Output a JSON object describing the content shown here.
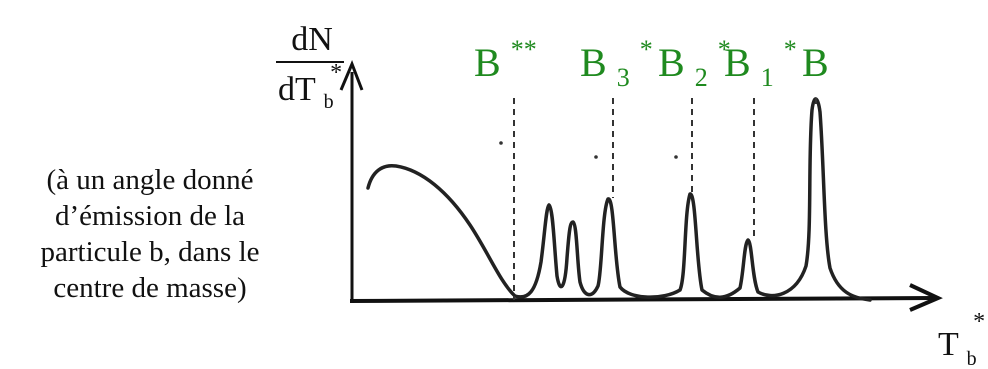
{
  "y_axis_label": {
    "numerator": "dN",
    "denominator_main": "dT",
    "denominator_sub": "b",
    "denominator_sup": "*"
  },
  "x_axis_label": {
    "main": "T",
    "sub": "b",
    "sup": "*"
  },
  "caption_lines": [
    "(à un angle donné",
    "d’émission de la",
    "particule b, dans le",
    "centre de masse)"
  ],
  "peak_labels": [
    {
      "base": "B",
      "sub": "",
      "sup": "**"
    },
    {
      "base": "B",
      "sub": "3",
      "sup": "*"
    },
    {
      "base": "B",
      "sub": "2",
      "sup": "*"
    },
    {
      "base": "B",
      "sub": "1",
      "sup": "*"
    },
    {
      "base": "B",
      "sub": "",
      "sup": ""
    }
  ],
  "colors": {
    "labels": "#1f8a1f",
    "ink": "#111111"
  }
}
